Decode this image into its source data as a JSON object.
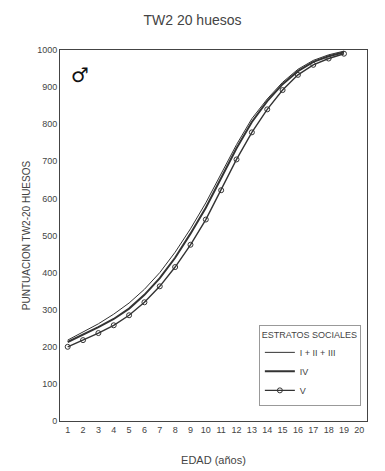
{
  "chart_data": {
    "type": "line",
    "title": "TW2 20 huesos",
    "annotations": [
      "♂"
    ],
    "xlabel": "EDAD (años)",
    "ylabel": "PUNTUACION TW2-20 HUESOS",
    "legend_title": "ESTRATOS SOCIALES",
    "x": [
      1,
      2,
      3,
      4,
      5,
      6,
      7,
      8,
      9,
      10,
      11,
      12,
      13,
      14,
      15,
      16,
      17,
      18,
      19
    ],
    "series": [
      {
        "name": "I + II + III",
        "color": "#333333",
        "line_style": "solid",
        "values": [
          218,
          240,
          262,
          288,
          318,
          355,
          400,
          455,
          518,
          588,
          665,
          745,
          815,
          868,
          913,
          948,
          972,
          987,
          997
        ]
      },
      {
        "name": "IV",
        "color": "#333333",
        "line_style": "solid",
        "values": [
          213,
          232,
          253,
          275,
          303,
          340,
          385,
          440,
          505,
          575,
          655,
          735,
          806,
          862,
          908,
          943,
          968,
          983,
          994
        ]
      },
      {
        "name": "V",
        "color": "#333333",
        "line_style": "solid",
        "marker": "circle",
        "values": [
          200,
          218,
          237,
          258,
          285,
          320,
          363,
          415,
          475,
          543,
          622,
          705,
          778,
          840,
          892,
          933,
          960,
          977,
          990
        ]
      }
    ],
    "xlim": [
      0.5,
      20.5
    ],
    "xticks": [
      1,
      2,
      3,
      4,
      5,
      6,
      7,
      8,
      9,
      10,
      11,
      12,
      13,
      14,
      15,
      16,
      17,
      18,
      19,
      20
    ],
    "ylim": [
      0,
      1000
    ],
    "yticks": [
      0,
      100,
      200,
      300,
      400,
      500,
      600,
      700,
      800,
      900,
      1000
    ],
    "grid": false,
    "legend": "lower right"
  }
}
